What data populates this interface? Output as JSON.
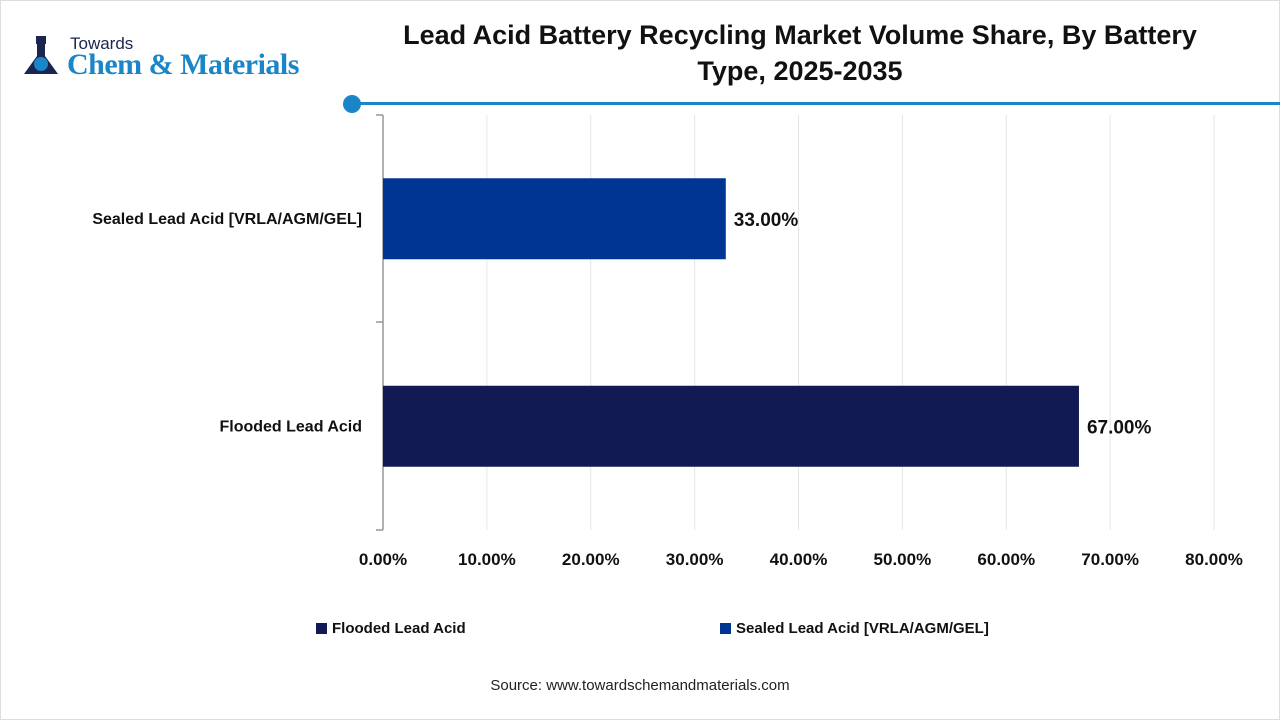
{
  "logo": {
    "top": "Towards",
    "main": "Chem & Materials"
  },
  "chart_data": {
    "type": "bar",
    "orientation": "horizontal",
    "title": "Lead Acid Battery Recycling Market Volume Share, By Battery Type, 2025-2035",
    "categories": [
      "Sealed Lead Acid [VRLA/AGM/GEL]",
      "Flooded Lead Acid"
    ],
    "values": [
      33,
      67
    ],
    "data_labels": [
      "33.00%",
      "67.00%"
    ],
    "colors": [
      "#003594",
      "#121a54"
    ],
    "xlim": [
      0,
      80
    ],
    "xticks": [
      0,
      10,
      20,
      30,
      40,
      50,
      60,
      70,
      80
    ],
    "xtick_labels": [
      "0.00%",
      "10.00%",
      "20.00%",
      "30.00%",
      "40.00%",
      "50.00%",
      "60.00%",
      "70.00%",
      "80.00%"
    ],
    "grid": true,
    "legend": [
      {
        "name": "Flooded Lead Acid",
        "color": "#121a54"
      },
      {
        "name": "Sealed Lead Acid [VRLA/AGM/GEL]",
        "color": "#003594"
      }
    ],
    "legend_position": "bottom"
  },
  "source": "Source: www.towardschemandmaterials.com"
}
